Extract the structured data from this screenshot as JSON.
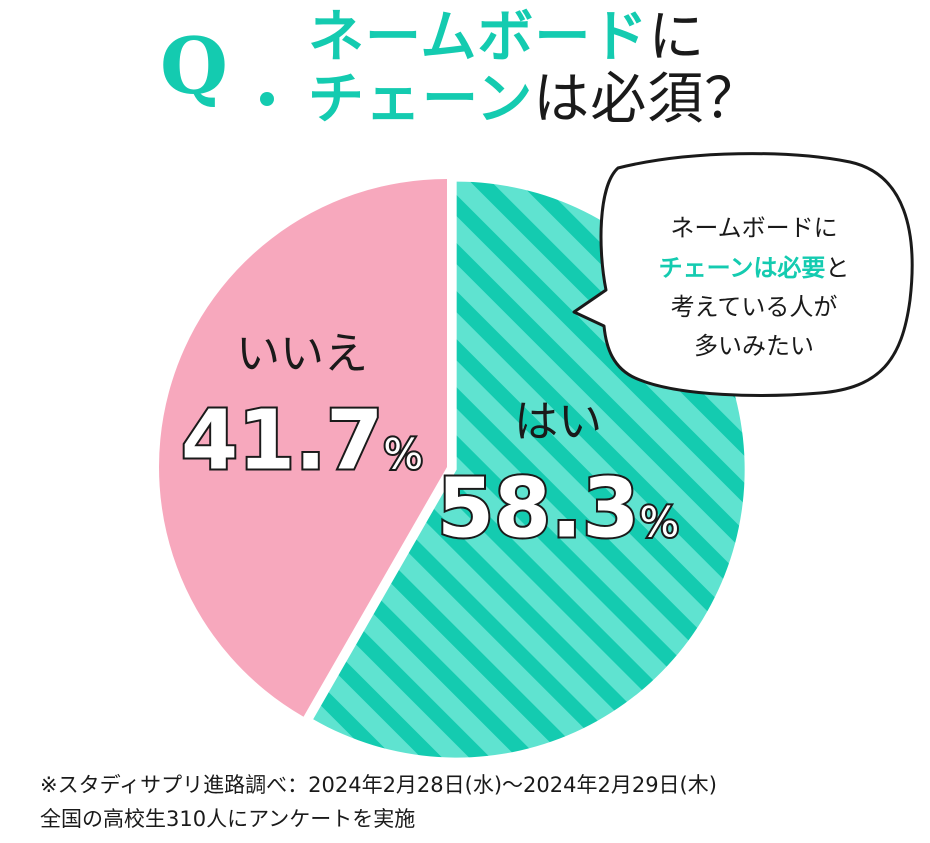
{
  "header": {
    "q_mark": "Q",
    "title_line1_accent": "ネームボード",
    "title_line1_plain": "に",
    "title_line2_accent": "チェーン",
    "title_line2_plain": "は必須？"
  },
  "colors": {
    "accent": "#14cbb0",
    "accent_light": "#5fe3d0",
    "pink": "#f7a8bd"
  },
  "chart_data": {
    "type": "pie",
    "title": "ネームボードにチェーンは必須？",
    "slices": [
      {
        "label": "はい",
        "value": 58.3,
        "display": "58.3",
        "unit": "%",
        "color": "#14cbb0",
        "pattern": "stripes",
        "exploded": true
      },
      {
        "label": "いいえ",
        "value": 41.7,
        "display": "41.7",
        "unit": "%",
        "color": "#f7a8bd",
        "pattern": "solid",
        "exploded": false
      }
    ]
  },
  "callout": {
    "line1": "ネームボードに",
    "line2_accent": "チェーンは必要",
    "line2_plain": "と",
    "line3": "考えている人が",
    "line4": "多いみたい"
  },
  "footer": {
    "line1": "※スタディサプリ進路調べ：2024年2月28日(水)〜2024年2月29日(木)",
    "line2": "全国の高校生310人にアンケートを実施"
  }
}
